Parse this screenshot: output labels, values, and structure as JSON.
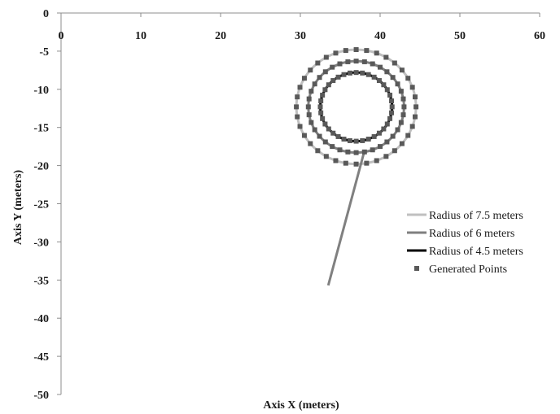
{
  "chart_data": {
    "type": "scatter",
    "xlabel": "Axis X (meters)",
    "ylabel": "Axis Y (meters)",
    "xlim": [
      0,
      60
    ],
    "ylim": [
      -50,
      0
    ],
    "x_ticks": [
      0,
      10,
      20,
      30,
      40,
      50,
      60
    ],
    "y_ticks": [
      0,
      -5,
      -10,
      -15,
      -20,
      -25,
      -30,
      -35,
      -40,
      -45,
      -50
    ],
    "x_axis_position": "top",
    "grid": false,
    "legend_position": "right",
    "center": {
      "x": 37,
      "y": -12.3
    },
    "series": [
      {
        "name": "Radius of 7.5 meters",
        "kind": "circle",
        "radius": 7.5,
        "color": "#c0c0c0"
      },
      {
        "name": "Radius of 6 meters",
        "kind": "circle",
        "radius": 6,
        "color": "#7f7f7f"
      },
      {
        "name": "Radius of 4.5 meters",
        "kind": "circle",
        "radius": 4.5,
        "color": "#000000"
      },
      {
        "name": "Generated Points",
        "kind": "markers",
        "marker": "square",
        "color": "#595959",
        "points_per_circle": 36
      }
    ],
    "pointer_line": {
      "color": "#808080",
      "points": [
        {
          "x": 38,
          "y": -18.2
        },
        {
          "x": 33.5,
          "y": -35.7
        }
      ]
    }
  }
}
